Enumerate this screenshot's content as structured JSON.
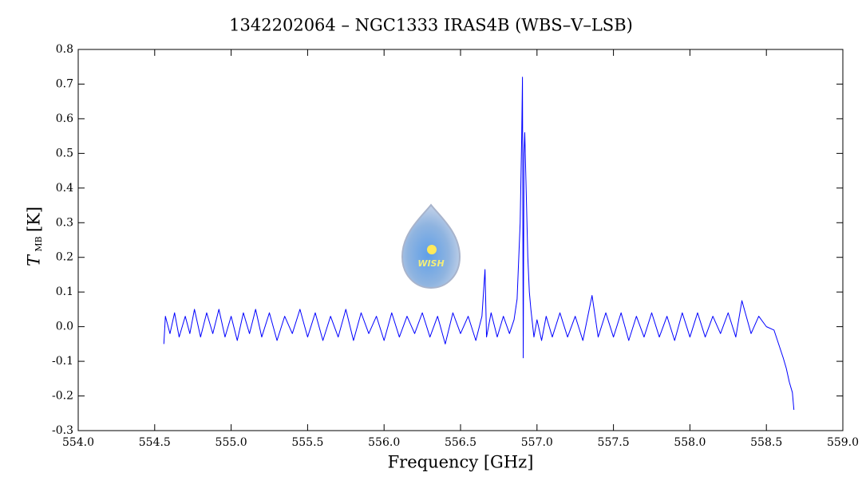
{
  "chart_data": {
    "type": "line",
    "title": "1342202064 – NGC1333 IRAS4B (WBS–V–LSB)",
    "xlabel": "Frequency [GHz]",
    "ylabel": {
      "symbol": "T",
      "subscript": "MB",
      "unit": "[K]"
    },
    "logo_text": "WISH",
    "xlim": [
      554.0,
      559.0
    ],
    "ylim": [
      -0.3,
      0.8
    ],
    "xticks": [
      {
        "value": 554,
        "label": "554.0"
      },
      {
        "value": 554.5,
        "label": "554.5"
      },
      {
        "value": 555,
        "label": "555.0"
      },
      {
        "value": 555.5,
        "label": "555.5"
      },
      {
        "value": 556,
        "label": "556.0"
      },
      {
        "value": 556.5,
        "label": "556.5"
      },
      {
        "value": 557,
        "label": "557.0"
      },
      {
        "value": 557.5,
        "label": "557.5"
      },
      {
        "value": 558,
        "label": "558.0"
      },
      {
        "value": 558.5,
        "label": "558.5"
      },
      {
        "value": 559,
        "label": "559.0"
      }
    ],
    "yticks": [
      -0.3,
      -0.2,
      -0.1,
      {
        "value": 0,
        "label": "0.0"
      },
      0.1,
      0.2,
      0.3,
      0.4,
      0.5,
      0.6,
      0.7,
      0.8
    ],
    "series": [
      {
        "color": "#0000ff",
        "x": [
          554.56,
          554.57,
          554.6,
          554.63,
          554.66,
          554.7,
          554.73,
          554.76,
          554.8,
          554.84,
          554.88,
          554.92,
          554.96,
          555.0,
          555.04,
          555.08,
          555.12,
          555.16,
          555.2,
          555.25,
          555.3,
          555.35,
          555.4,
          555.45,
          555.5,
          555.55,
          555.6,
          555.65,
          555.7,
          555.75,
          555.8,
          555.85,
          555.9,
          555.95,
          556.0,
          556.05,
          556.1,
          556.15,
          556.2,
          556.25,
          556.3,
          556.35,
          556.4,
          556.45,
          556.5,
          556.55,
          556.6,
          556.64,
          556.66,
          556.67,
          556.7,
          556.74,
          556.78,
          556.82,
          556.85,
          556.87,
          556.89,
          556.9,
          556.905,
          556.91,
          556.915,
          556.92,
          556.93,
          556.94,
          556.95,
          556.96,
          556.98,
          557.0,
          557.03,
          557.06,
          557.1,
          557.15,
          557.2,
          557.25,
          557.3,
          557.36,
          557.4,
          557.45,
          557.5,
          557.55,
          557.6,
          557.65,
          557.7,
          557.75,
          557.8,
          557.85,
          557.9,
          557.95,
          558.0,
          558.05,
          558.1,
          558.15,
          558.2,
          558.25,
          558.3,
          558.34,
          558.4,
          558.45,
          558.5,
          558.55,
          558.58,
          558.61,
          558.63,
          558.65,
          558.67,
          558.68
        ],
        "values": [
          -0.05,
          0.03,
          -0.02,
          0.04,
          -0.03,
          0.03,
          -0.02,
          0.05,
          -0.03,
          0.04,
          -0.02,
          0.05,
          -0.03,
          0.03,
          -0.04,
          0.04,
          -0.02,
          0.05,
          -0.03,
          0.04,
          -0.04,
          0.03,
          -0.02,
          0.05,
          -0.03,
          0.04,
          -0.04,
          0.03,
          -0.03,
          0.05,
          -0.04,
          0.04,
          -0.02,
          0.03,
          -0.04,
          0.04,
          -0.03,
          0.03,
          -0.02,
          0.04,
          -0.03,
          0.03,
          -0.05,
          0.04,
          -0.02,
          0.03,
          -0.04,
          0.03,
          0.165,
          -0.03,
          0.04,
          -0.03,
          0.03,
          -0.02,
          0.02,
          0.08,
          0.3,
          0.55,
          0.72,
          -0.09,
          0.5,
          0.56,
          0.38,
          0.2,
          0.1,
          0.05,
          -0.03,
          0.02,
          -0.04,
          0.03,
          -0.03,
          0.04,
          -0.03,
          0.03,
          -0.04,
          0.09,
          -0.03,
          0.04,
          -0.03,
          0.04,
          -0.04,
          0.03,
          -0.03,
          0.04,
          -0.03,
          0.03,
          -0.04,
          0.04,
          -0.03,
          0.04,
          -0.03,
          0.03,
          -0.02,
          0.04,
          -0.03,
          0.075,
          -0.02,
          0.03,
          0.0,
          -0.01,
          -0.05,
          -0.09,
          -0.12,
          -0.16,
          -0.19,
          -0.24
        ]
      }
    ]
  }
}
